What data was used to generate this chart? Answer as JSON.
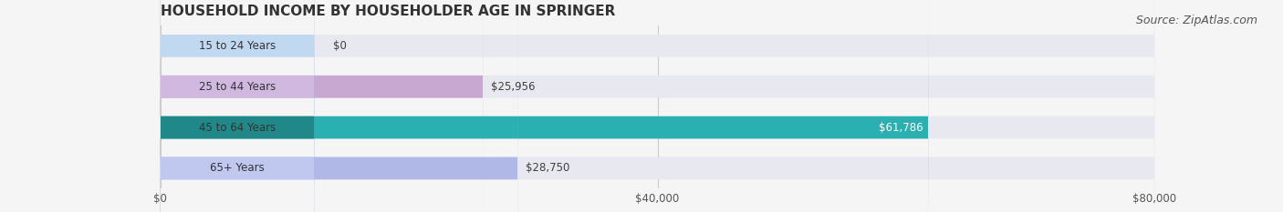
{
  "title": "HOUSEHOLD INCOME BY HOUSEHOLDER AGE IN SPRINGER",
  "source": "Source: ZipAtlas.com",
  "categories": [
    "15 to 24 Years",
    "25 to 44 Years",
    "45 to 64 Years",
    "65+ Years"
  ],
  "values": [
    0,
    25956,
    61786,
    28750
  ],
  "bar_colors": [
    "#a8c8e8",
    "#c8a8d0",
    "#2ab0b0",
    "#b0b8e8"
  ],
  "bar_bg_color": "#e8e8f0",
  "label_bg_color": [
    "#c0d8f0",
    "#d0b8e0",
    "#208888",
    "#c0c8f0"
  ],
  "value_colors": [
    "#404040",
    "#404040",
    "#ffffff",
    "#404040"
  ],
  "xlim": [
    0,
    80000
  ],
  "xticks": [
    0,
    40000,
    80000
  ],
  "xtick_labels": [
    "$0",
    "$40,000",
    "$80,000"
  ],
  "title_fontsize": 11,
  "source_fontsize": 9,
  "bar_height": 0.55,
  "figsize": [
    14.06,
    2.33
  ],
  "dpi": 100
}
